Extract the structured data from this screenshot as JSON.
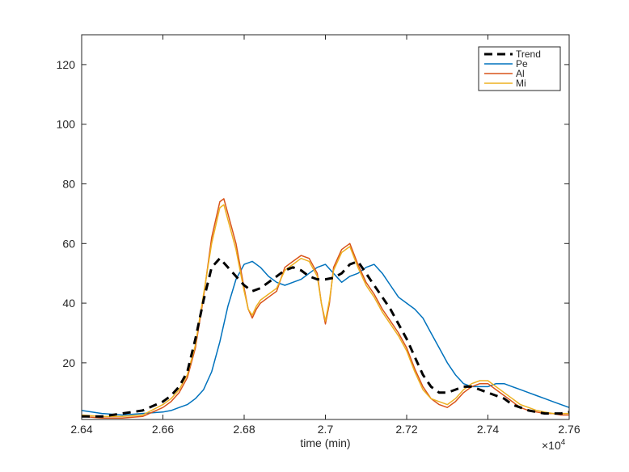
{
  "chart_data": {
    "type": "line",
    "title": "",
    "xlabel": "time (min)",
    "ylabel": "",
    "x_exponent_label": "×10",
    "x_exponent_power": "4",
    "xlim": [
      26400,
      27600
    ],
    "ylim": [
      1,
      130
    ],
    "x_ticks": [
      26400,
      26600,
      26800,
      27000,
      27200,
      27400,
      27600
    ],
    "x_tick_labels": [
      "2.64",
      "2.66",
      "2.68",
      "2.7",
      "2.72",
      "2.74",
      "2.76"
    ],
    "y_ticks": [
      20,
      40,
      60,
      80,
      100,
      120
    ],
    "y_tick_labels": [
      "20",
      "40",
      "60",
      "80",
      "100",
      "120"
    ],
    "grid": false,
    "legend_position": "top-right",
    "series": [
      {
        "name": "Trend",
        "color": "#000000",
        "style": "dashed",
        "x": [
          26400,
          26450,
          26500,
          26550,
          26600,
          26620,
          26640,
          26660,
          26680,
          26700,
          26720,
          26740,
          26760,
          26780,
          26800,
          26820,
          26840,
          26860,
          26880,
          26900,
          26920,
          26940,
          26960,
          26980,
          27000,
          27020,
          27040,
          27060,
          27080,
          27100,
          27120,
          27140,
          27160,
          27180,
          27200,
          27220,
          27240,
          27260,
          27280,
          27300,
          27320,
          27340,
          27360,
          27380,
          27400,
          27420,
          27440,
          27460,
          27480,
          27500,
          27520,
          27540,
          27560,
          27580,
          27600
        ],
        "y": [
          2,
          2,
          3,
          4,
          7,
          9,
          12,
          17,
          28,
          41,
          52,
          55,
          52,
          49,
          46,
          44,
          45,
          47,
          49,
          51,
          52,
          51,
          49,
          48,
          48,
          48.5,
          50,
          53,
          54,
          50,
          46,
          42,
          38,
          33,
          28,
          22,
          16,
          12,
          10,
          10,
          11,
          12,
          12,
          11,
          10,
          9,
          8,
          6,
          5,
          4,
          3.5,
          3,
          3,
          3,
          3.5
        ]
      },
      {
        "name": "Pe",
        "color": "#0072BD",
        "style": "solid",
        "x": [
          26400,
          26450,
          26500,
          26550,
          26600,
          26620,
          26640,
          26660,
          26680,
          26700,
          26720,
          26740,
          26760,
          26780,
          26800,
          26820,
          26840,
          26860,
          26880,
          26900,
          26920,
          26940,
          26960,
          26980,
          27000,
          27020,
          27040,
          27060,
          27080,
          27100,
          27120,
          27140,
          27160,
          27180,
          27200,
          27220,
          27240,
          27260,
          27280,
          27300,
          27320,
          27340,
          27360,
          27380,
          27400,
          27420,
          27440,
          27460,
          27480,
          27500,
          27520,
          27540,
          27560,
          27580,
          27600
        ],
        "y": [
          4,
          3,
          2.5,
          3,
          3.5,
          4,
          5,
          6,
          8,
          11,
          17,
          27,
          39,
          48,
          53,
          54,
          52,
          49,
          47,
          46,
          47,
          48,
          50,
          52,
          53,
          50,
          47,
          49,
          50,
          52,
          53,
          50,
          46,
          42,
          40,
          38,
          35,
          30,
          25,
          20,
          16,
          13,
          12,
          12,
          12,
          13,
          13,
          12,
          11,
          10,
          9,
          8,
          7,
          6,
          5
        ]
      },
      {
        "name": "Al",
        "color": "#D95319",
        "style": "solid",
        "x": [
          26400,
          26450,
          26500,
          26550,
          26600,
          26620,
          26640,
          26660,
          26680,
          26700,
          26720,
          26740,
          26750,
          26760,
          26780,
          26800,
          26810,
          26820,
          26830,
          26840,
          26860,
          26880,
          26900,
          26920,
          26940,
          26960,
          26980,
          26990,
          27000,
          27010,
          27020,
          27040,
          27060,
          27080,
          27100,
          27120,
          27140,
          27160,
          27180,
          27200,
          27220,
          27240,
          27260,
          27280,
          27300,
          27320,
          27340,
          27360,
          27380,
          27400,
          27420,
          27440,
          27460,
          27480,
          27500,
          27520,
          27540,
          27560,
          27580,
          27600
        ],
        "y": [
          2,
          1.5,
          1.5,
          2,
          5,
          7,
          10,
          15,
          25,
          42,
          62,
          74,
          75,
          70,
          60,
          45,
          38,
          35,
          38,
          40,
          42,
          44,
          52,
          54,
          56,
          55,
          50,
          40,
          33,
          40,
          52,
          58,
          60,
          53,
          47,
          43,
          38,
          34,
          30,
          25,
          18,
          12,
          8,
          6,
          5,
          7,
          10,
          12,
          13,
          13,
          11,
          9,
          7,
          5,
          4,
          3.5,
          3,
          3,
          2.5,
          2.5
        ]
      },
      {
        "name": "Mi",
        "color": "#EDB120",
        "style": "solid",
        "x": [
          26400,
          26450,
          26500,
          26550,
          26600,
          26620,
          26640,
          26660,
          26680,
          26700,
          26720,
          26740,
          26750,
          26760,
          26780,
          26800,
          26810,
          26820,
          26830,
          26840,
          26860,
          26880,
          26900,
          26920,
          26940,
          26960,
          26980,
          26990,
          27000,
          27010,
          27020,
          27040,
          27060,
          27080,
          27100,
          27120,
          27140,
          27160,
          27180,
          27200,
          27220,
          27240,
          27260,
          27280,
          27300,
          27320,
          27340,
          27360,
          27380,
          27400,
          27420,
          27440,
          27460,
          27480,
          27500,
          27520,
          27540,
          27560,
          27580,
          27600
        ],
        "y": [
          2.5,
          2,
          2,
          2.5,
          6,
          8,
          11,
          16,
          26,
          43,
          60,
          72,
          73,
          68,
          58,
          44,
          38,
          36,
          39,
          41,
          43,
          45,
          51,
          53,
          55,
          54,
          49,
          40,
          34,
          41,
          51,
          57,
          59,
          52,
          46,
          42,
          37,
          33,
          29,
          24,
          17,
          11,
          8,
          7,
          6,
          8,
          11,
          13,
          14,
          14,
          12,
          10,
          8,
          6,
          5,
          4,
          3.5,
          3,
          3,
          3
        ]
      }
    ]
  }
}
